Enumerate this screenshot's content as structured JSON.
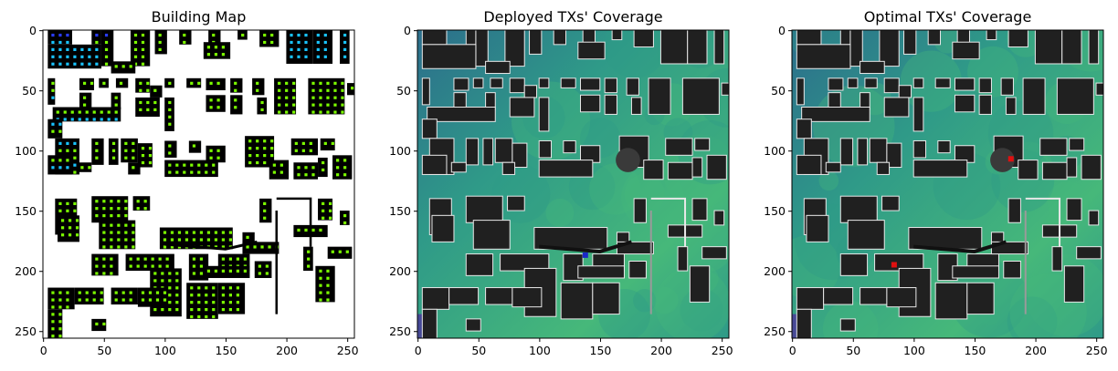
{
  "chart_data": [
    {
      "type": "heatmap",
      "title": "Building Map",
      "xlabel": "",
      "ylabel": "",
      "xlim": [
        0,
        256
      ],
      "ylim": [
        256,
        0
      ],
      "xticks": [
        "0",
        "50",
        "100",
        "150",
        "200",
        "250"
      ],
      "yticks": [
        "0",
        "50",
        "100",
        "150",
        "200",
        "250"
      ],
      "colors": {
        "background": "#ffffff",
        "building": "#000000",
        "window_lime": "#7cff00",
        "window_cyan": "#19c3ff",
        "window_blue": "#2a3cff"
      },
      "grid": false
    },
    {
      "type": "heatmap",
      "title": "Deployed TXs' Coverage",
      "xlabel": "",
      "ylabel": "",
      "xlim": [
        0,
        256
      ],
      "ylim": [
        256,
        0
      ],
      "xticks": [
        "0",
        "50",
        "100",
        "150",
        "200",
        "250"
      ],
      "yticks": [
        "0",
        "50",
        "100",
        "150",
        "200",
        "250"
      ],
      "transmitters": [
        {
          "x": 138,
          "y": 187,
          "color": "#1a28c8"
        }
      ],
      "colors": {
        "coverage_high": "#46b87a",
        "coverage_mid": "#2f9a88",
        "coverage_low": "#2c6e8c",
        "building": "#202020",
        "outline": "#e8e8e8"
      },
      "grid": false
    },
    {
      "type": "heatmap",
      "title": "Optimal TXs' Coverage",
      "xlabel": "",
      "ylabel": "",
      "xlim": [
        0,
        256
      ],
      "ylim": [
        256,
        0
      ],
      "xticks": [
        "0",
        "50",
        "100",
        "150",
        "200",
        "250"
      ],
      "yticks": [
        "0",
        "50",
        "100",
        "150",
        "200",
        "250"
      ],
      "transmitters": [
        {
          "x": 180,
          "y": 107,
          "color": "#e01010"
        },
        {
          "x": 84,
          "y": 195,
          "color": "#e01010"
        }
      ],
      "colors": {
        "coverage_high": "#46b87a",
        "coverage_mid": "#2f9a88",
        "coverage_low": "#2c6e8c",
        "building": "#202020",
        "outline": "#e8e8e8"
      },
      "grid": false
    }
  ]
}
